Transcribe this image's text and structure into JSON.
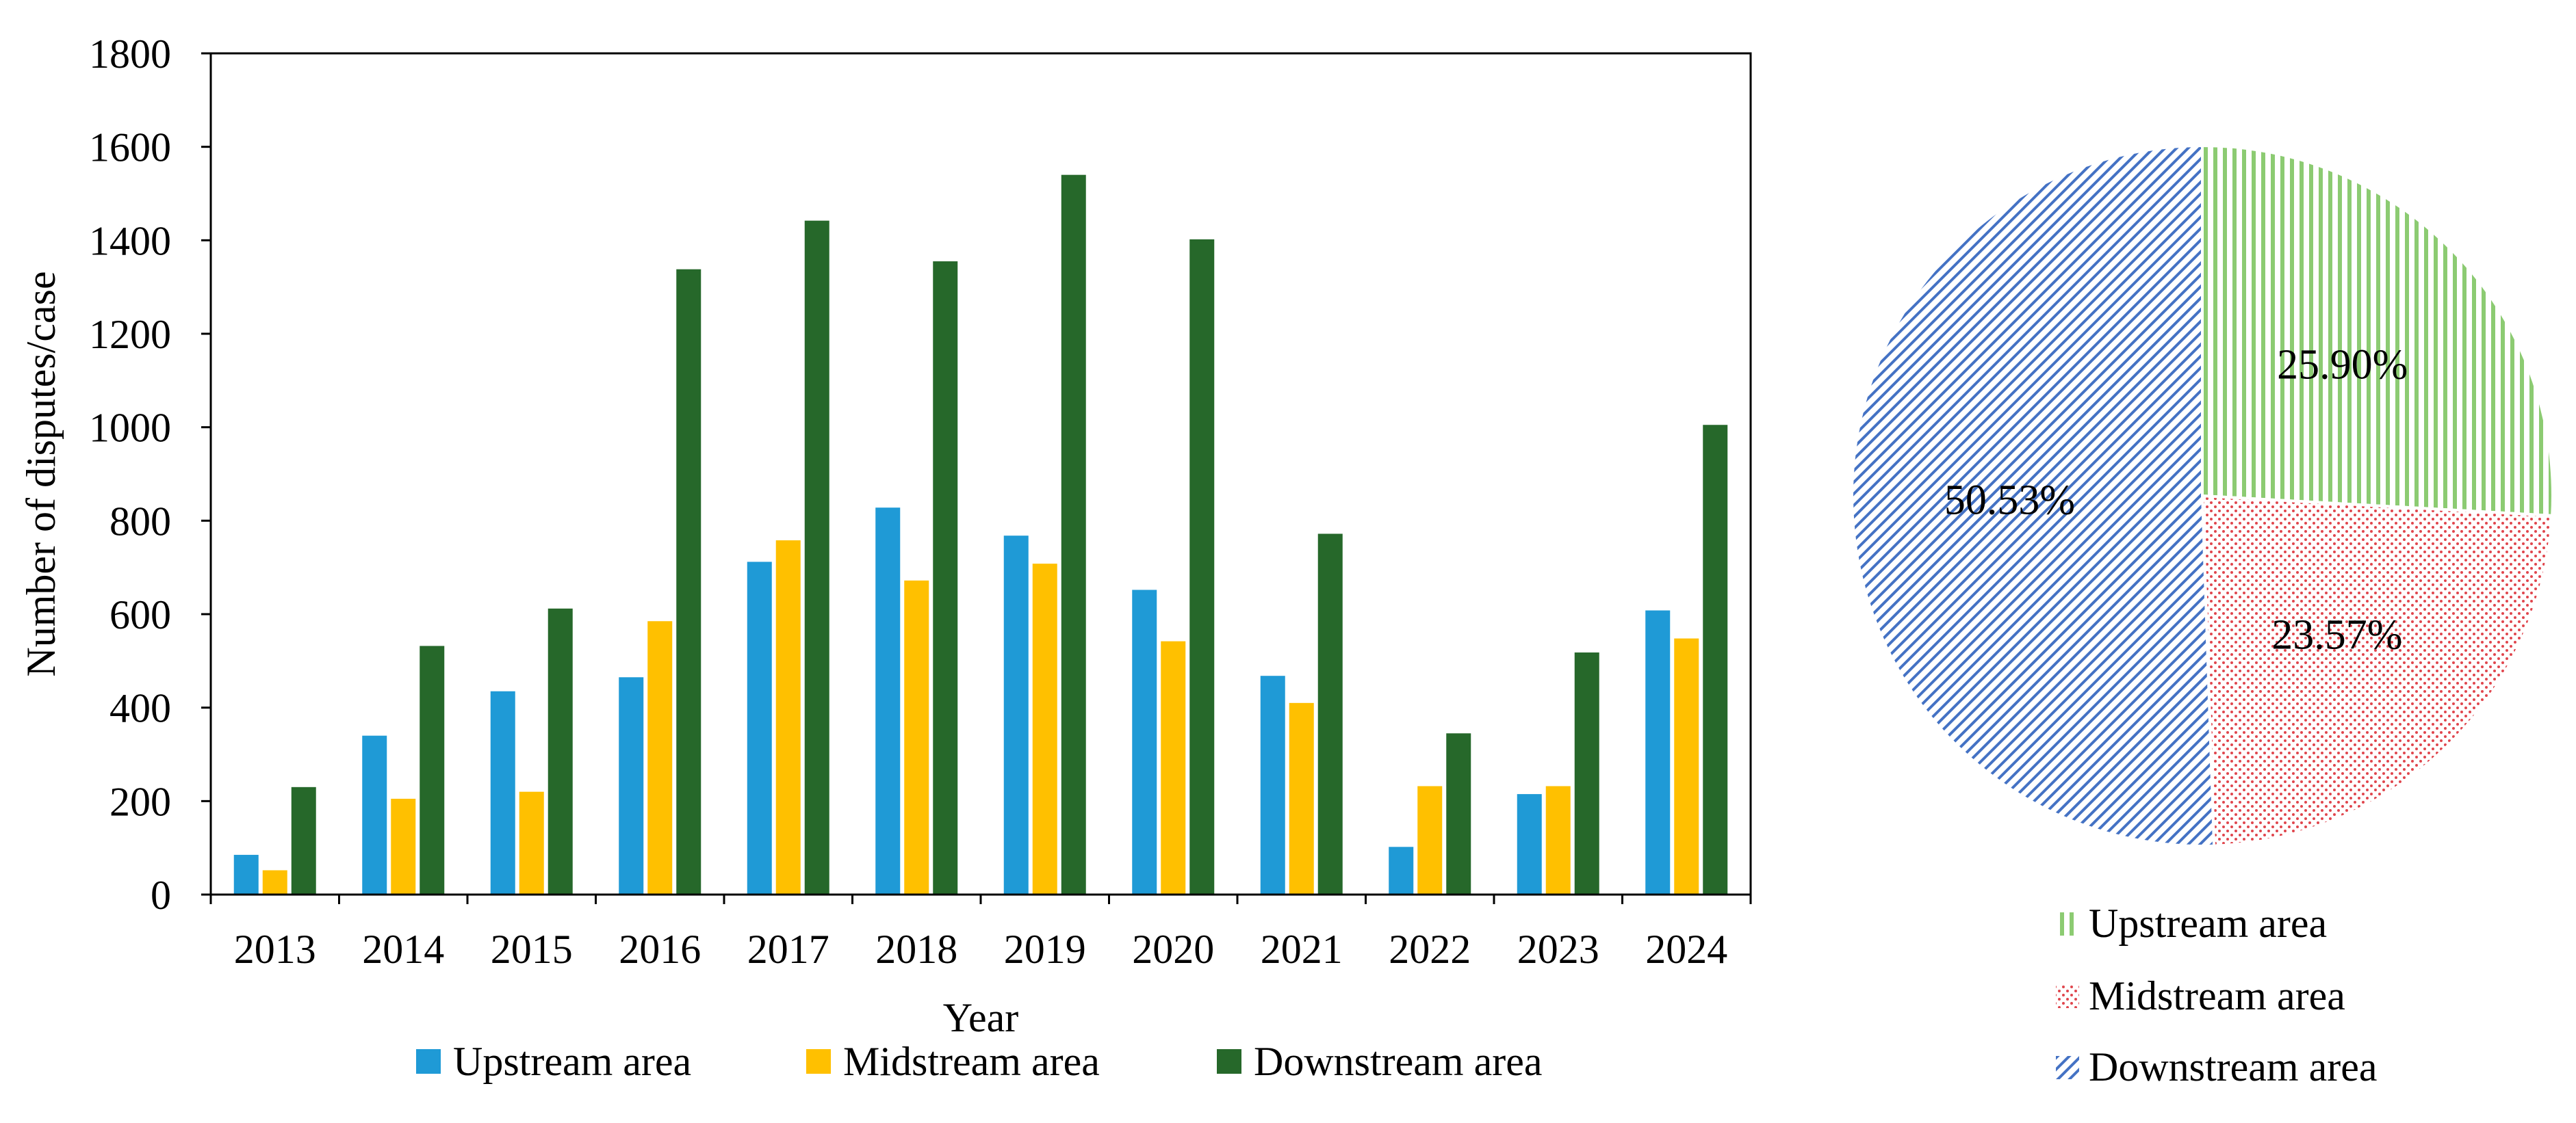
{
  "chart_data": [
    {
      "type": "bar",
      "title": "",
      "xlabel": "Year",
      "ylabel": "Number of disputes/case",
      "ylim": [
        0,
        1800
      ],
      "yticks": [
        0,
        200,
        400,
        600,
        800,
        1000,
        1200,
        1400,
        1600,
        1800
      ],
      "grid": false,
      "legend_position": "bottom",
      "categories": [
        "2013",
        "2014",
        "2015",
        "2016",
        "2017",
        "2018",
        "2019",
        "2020",
        "2021",
        "2022",
        "2023",
        "2024"
      ],
      "series": [
        {
          "name": "Upstream area",
          "color": "#1f9ad6",
          "values": [
            85,
            340,
            435,
            465,
            712,
            828,
            768,
            652,
            468,
            102,
            215,
            608
          ]
        },
        {
          "name": "Midstream area",
          "color": "#ffc000",
          "values": [
            52,
            205,
            220,
            585,
            758,
            672,
            708,
            542,
            410,
            232,
            232,
            548
          ]
        },
        {
          "name": "Downstream area",
          "color": "#26682a",
          "values": [
            230,
            532,
            612,
            1338,
            1442,
            1355,
            1540,
            1402,
            772,
            345,
            518,
            1005
          ]
        }
      ]
    },
    {
      "type": "pie",
      "title": "",
      "legend_position": "bottom",
      "slices": [
        {
          "name": "Upstream area",
          "value": 25.9,
          "label": "25.90%",
          "color": "#8ccb72",
          "pattern": "vertical-lines"
        },
        {
          "name": "Midstream area",
          "value": 23.57,
          "label": "23.57%",
          "color": "#e0464d",
          "pattern": "dots"
        },
        {
          "name": "Downstream area",
          "value": 50.53,
          "label": "50.53%",
          "color": "#4472c4",
          "pattern": "diagonal-lines"
        }
      ]
    }
  ]
}
